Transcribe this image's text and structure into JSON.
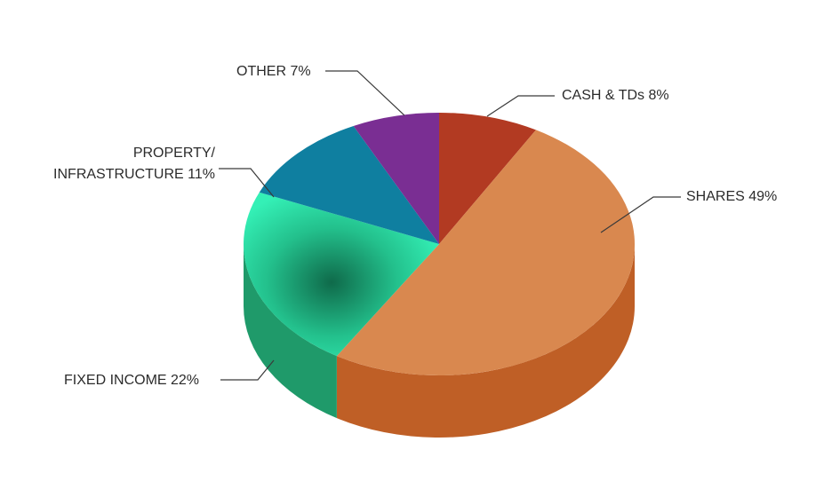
{
  "chart_data": {
    "type": "pie",
    "style": "3d",
    "title": "",
    "legend": "none",
    "slices": [
      {
        "name": "CASH & TDs",
        "value": 8,
        "label": "CASH & TDs 8%",
        "color": "#b23a22",
        "side_color": "#8e2c18"
      },
      {
        "name": "SHARES",
        "value": 49,
        "label": "SHARES 49%",
        "color": "#d9884f",
        "side_color": "#bf5f26"
      },
      {
        "name": "FIXED INCOME",
        "value": 22,
        "label": "FIXED INCOME 22%",
        "color": "#2ee8b0",
        "side_color": "#1f9a6a"
      },
      {
        "name": "PROPERTY/ INFRASTRUCTURE",
        "value": 11,
        "label_lines": [
          "PROPERTY/",
          "INFRASTRUCTURE 11%"
        ],
        "color": "#0f7fa0",
        "side_color": "#0b5f78"
      },
      {
        "name": "OTHER",
        "value": 7,
        "label": "OTHER 7%",
        "color": "#7a2e93",
        "side_color": "#5a206d"
      }
    ]
  }
}
